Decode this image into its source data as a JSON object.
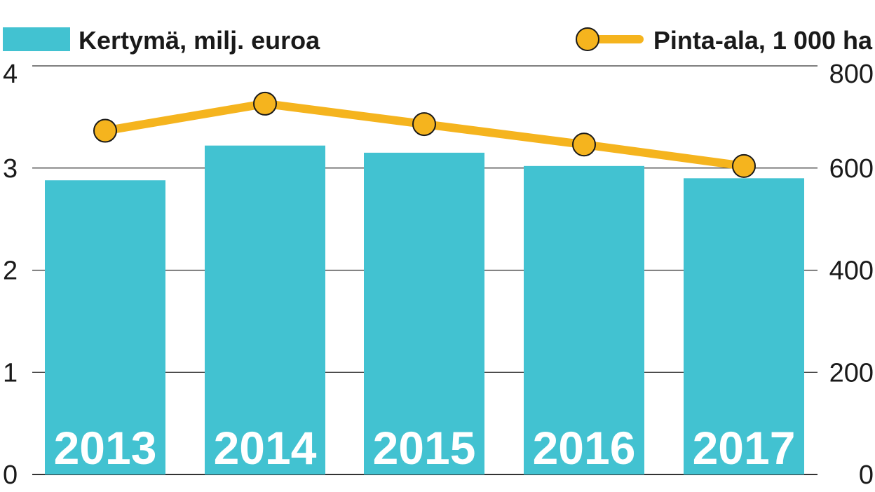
{
  "colors": {
    "bar": "#42c2d1",
    "line": "#f5b41e",
    "marker_fill": "#f5b41e",
    "marker_stroke": "#1a1a1a",
    "grid": "#333333",
    "text": "#1a1a1a",
    "category_label": "#ffffff"
  },
  "chart_data": {
    "type": "bar",
    "title": "",
    "categories": [
      "2013",
      "2014",
      "2015",
      "2016",
      "2017"
    ],
    "series": [
      {
        "name": "Kertymä, milj. euroa",
        "type": "bar",
        "axis": "left",
        "values": [
          2.88,
          3.22,
          3.15,
          3.02,
          2.9
        ]
      },
      {
        "name": "Pinta-ala, 1 000 ha",
        "type": "line",
        "axis": "right",
        "values": [
          673,
          726,
          686,
          646,
          604
        ]
      }
    ],
    "y_left": {
      "range": [
        0,
        4
      ],
      "ticks": [
        "0",
        "1",
        "2",
        "3",
        "4"
      ]
    },
    "y_right": {
      "range": [
        0,
        800
      ],
      "ticks": [
        "0",
        "200",
        "400",
        "600",
        "800"
      ]
    },
    "grid": true,
    "legend": "top"
  }
}
